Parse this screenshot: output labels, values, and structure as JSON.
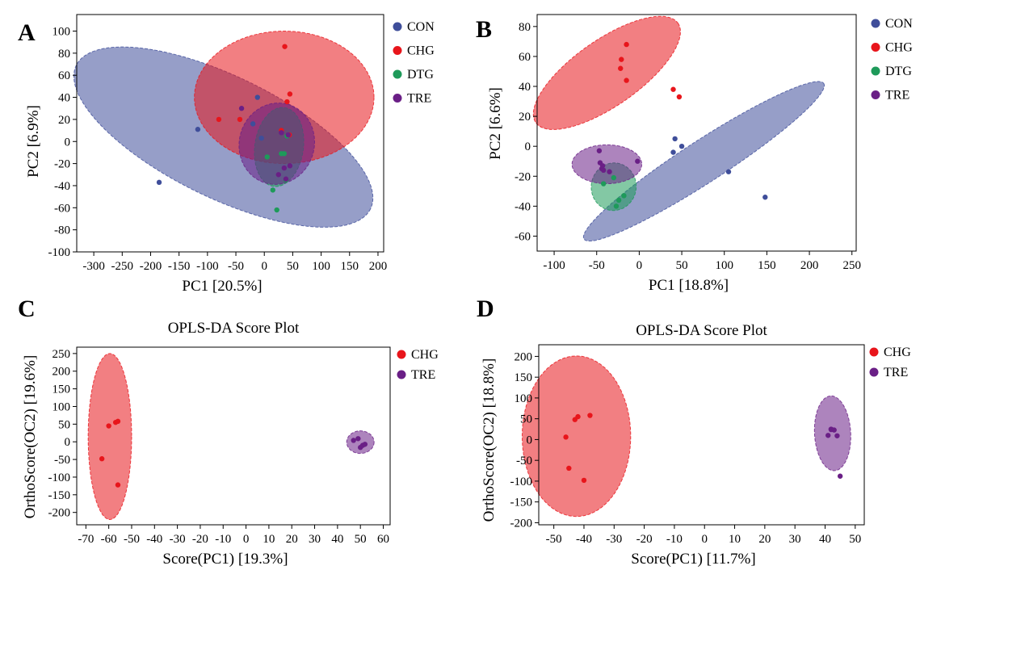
{
  "colors": {
    "CON": "#3F4E9A",
    "CHG": "#E8151B",
    "DTG": "#1E9A5A",
    "TRE": "#6A1F86"
  },
  "chart_data": [
    {
      "panel": "A",
      "type": "scatter",
      "title": "",
      "xlabel": "PC1 [20.5%]",
      "ylabel": "PC2 [6.9%]",
      "xlim": [
        -330,
        210
      ],
      "ylim": [
        -100,
        115
      ],
      "xticks": [
        -300,
        -250,
        -200,
        -150,
        -100,
        -50,
        0,
        50,
        100,
        150,
        200
      ],
      "yticks": [
        -100,
        -80,
        -60,
        -40,
        -20,
        0,
        20,
        40,
        60,
        80,
        100
      ],
      "legend": [
        "CON",
        "CHG",
        "DTG",
        "TRE"
      ],
      "legend_position": "outside-top-right",
      "series": [
        {
          "name": "CON",
          "x": [
            -185,
            -117,
            -20,
            -12,
            -5
          ],
          "y": [
            -37,
            11,
            16,
            40,
            3
          ],
          "ellipse": {
            "cx": -72,
            "cy": 4,
            "rx": 288,
            "ry": 55,
            "angle": 26
          }
        },
        {
          "name": "CHG",
          "x": [
            -80,
            -43,
            30,
            36,
            40,
            44,
            45
          ],
          "y": [
            20,
            20,
            10,
            86,
            36,
            6,
            43
          ],
          "ellipse": {
            "cx": 35,
            "cy": 40,
            "rx": 158,
            "ry": 60,
            "angle": 0
          }
        },
        {
          "name": "DTG",
          "x": [
            5,
            15,
            22,
            30,
            35,
            38,
            40
          ],
          "y": [
            -14,
            -44,
            -62,
            -11,
            -11,
            -35,
            5
          ],
          "ellipse": {
            "cx": 26,
            "cy": -5,
            "rx": 70,
            "ry": 22,
            "angle": -82
          }
        },
        {
          "name": "TRE",
          "x": [
            -40,
            25,
            35,
            38,
            42,
            45,
            30
          ],
          "y": [
            30,
            -30,
            -24,
            -34,
            6,
            -22,
            8
          ],
          "ellipse": {
            "cx": 22,
            "cy": -2,
            "rx": 72,
            "ry": 34,
            "angle": -75
          }
        }
      ]
    },
    {
      "panel": "B",
      "type": "scatter",
      "title": "",
      "xlabel": "PC1 [18.8%]",
      "ylabel": "PC2 [6.6%]",
      "xlim": [
        -120,
        255
      ],
      "ylim": [
        -70,
        88
      ],
      "xticks": [
        -100,
        -50,
        0,
        50,
        100,
        150,
        200,
        250
      ],
      "yticks": [
        -60,
        -40,
        -20,
        0,
        20,
        40,
        60,
        80
      ],
      "legend": [
        "CON",
        "CHG",
        "DTG",
        "TRE"
      ],
      "legend_position": "outside-top-right",
      "series": [
        {
          "name": "CON",
          "x": [
            40,
            42,
            50,
            105,
            148
          ],
          "y": [
            -4,
            5,
            0,
            -17,
            -34
          ],
          "ellipse": {
            "cx": 76,
            "cy": -10,
            "rx": 168,
            "ry": 14,
            "angle": -33
          }
        },
        {
          "name": "CHG",
          "x": [
            -22,
            -21,
            -15,
            -15,
            40,
            47
          ],
          "y": [
            52,
            58,
            44,
            68,
            38,
            33
          ],
          "ellipse": {
            "cx": -38,
            "cy": 49,
            "rx": 102,
            "ry": 22,
            "angle": -35
          }
        },
        {
          "name": "DTG",
          "x": [
            -42,
            -30,
            -27,
            -24,
            -18
          ],
          "y": [
            -25,
            -21,
            -40,
            -36,
            -33
          ],
          "ellipse": {
            "cx": -30,
            "cy": -27,
            "rx": 28,
            "ry": 15,
            "angle": -82
          }
        },
        {
          "name": "TRE",
          "x": [
            -47,
            -46,
            -44,
            -43,
            -42,
            -35,
            -2
          ],
          "y": [
            -3,
            -11,
            -15,
            -13,
            -16,
            -17,
            -10
          ],
          "ellipse": {
            "cx": -38,
            "cy": -12,
            "rx": 41,
            "ry": 13,
            "angle": 0
          }
        }
      ]
    },
    {
      "panel": "C",
      "type": "scatter",
      "title": "OPLS-DA Score Plot",
      "xlabel": "Score(PC1) [19.3%]",
      "ylabel": "OrthoScore(OC2) [19.6%]",
      "xlim": [
        -74,
        63
      ],
      "ylim": [
        -235,
        268
      ],
      "xticks": [
        -70,
        -60,
        -50,
        -40,
        -30,
        -20,
        -10,
        0,
        10,
        20,
        30,
        40,
        50,
        60
      ],
      "yticks": [
        -200,
        -150,
        -100,
        -50,
        0,
        50,
        100,
        150,
        200,
        250
      ],
      "legend": [
        "CHG",
        "TRE"
      ],
      "legend_position": "outside-top-right",
      "series": [
        {
          "name": "CHG",
          "x": [
            -63,
            -60,
            -57,
            -56,
            -56
          ],
          "y": [
            -48,
            45,
            55,
            58,
            -122
          ],
          "ellipse": {
            "cx": -59.5,
            "cy": 15,
            "rx": 9.5,
            "ry": 235,
            "angle": 0
          }
        },
        {
          "name": "TRE",
          "x": [
            47,
            49,
            50,
            51,
            52
          ],
          "y": [
            4,
            9,
            -16,
            -10,
            -7
          ],
          "ellipse": {
            "cx": 50,
            "cy": -1,
            "rx": 6,
            "ry": 32,
            "angle": 0
          }
        }
      ]
    },
    {
      "panel": "D",
      "type": "scatter",
      "title": "OPLS-DA Score Plot",
      "xlabel": "Score(PC1) [11.7%]",
      "ylabel": "OrthoScore(OC2) [18.8%]",
      "xlim": [
        -55,
        53
      ],
      "ylim": [
        -205,
        228
      ],
      "xticks": [
        -50,
        -40,
        -30,
        -20,
        -10,
        0,
        10,
        20,
        30,
        40,
        50
      ],
      "yticks": [
        -200,
        -150,
        -100,
        -50,
        0,
        50,
        100,
        150,
        200
      ],
      "legend": [
        "CHG",
        "TRE"
      ],
      "legend_position": "outside-top-right",
      "series": [
        {
          "name": "CHG",
          "x": [
            -46,
            -45,
            -43,
            -42,
            -40,
            -38
          ],
          "y": [
            6,
            -69,
            48,
            55,
            -98,
            58
          ],
          "ellipse": {
            "cx": -42.5,
            "cy": 8,
            "rx": 18,
            "ry": 193,
            "angle": 0
          }
        },
        {
          "name": "TRE",
          "x": [
            41,
            42,
            42,
            43,
            44,
            45
          ],
          "y": [
            10,
            25,
            24,
            23,
            9,
            -88
          ],
          "ellipse": {
            "cx": 42.5,
            "cy": 15,
            "rx": 6,
            "ry": 90,
            "angle": -3
          }
        }
      ]
    }
  ]
}
